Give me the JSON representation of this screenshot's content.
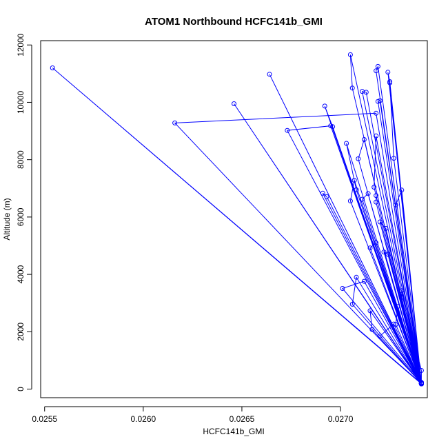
{
  "chart_data": {
    "type": "line",
    "title": "ATOM1 Northbound HCFC141b_GMI",
    "xlabel": "HCFC141b_GMI",
    "ylabel": "Altitude (m)",
    "xlim": [
      0.02548,
      0.02744
    ],
    "ylim": [
      -300,
      12150
    ],
    "x_ticks": [
      0.0255,
      0.026,
      0.0265,
      0.027
    ],
    "x_tick_labels": [
      "0.0255",
      "0.0260",
      "0.0265",
      "0.0270"
    ],
    "y_ticks": [
      0,
      2000,
      4000,
      6000,
      8000,
      10000,
      12000
    ],
    "y_tick_labels": [
      "0",
      "2000",
      "4000",
      "6000",
      "8000",
      "10000",
      "12000"
    ],
    "series_color": "#0000ff",
    "marker": "open-circle",
    "points": [
      [
        0.02741,
        180
      ],
      [
        0.02554,
        11200
      ],
      [
        0.02741,
        200
      ],
      [
        0.02664,
        10980
      ],
      [
        0.02741,
        190
      ],
      [
        0.02646,
        9950
      ],
      [
        0.02741,
        210
      ],
      [
        0.02616,
        9280
      ],
      [
        0.02718,
        9620
      ],
      [
        0.02741,
        180
      ],
      [
        0.02673,
        9020
      ],
      [
        0.02695,
        9180
      ],
      [
        0.02741,
        200
      ],
      [
        0.02705,
        11660
      ],
      [
        0.02706,
        10500
      ],
      [
        0.02741,
        190
      ],
      [
        0.02692,
        9870
      ],
      [
        0.02696,
        9150
      ],
      [
        0.02741,
        230
      ],
      [
        0.02725,
        10680
      ],
      [
        0.02727,
        8050
      ],
      [
        0.02741,
        200
      ],
      [
        0.02711,
        10380
      ],
      [
        0.02713,
        10350
      ],
      [
        0.02741,
        190
      ],
      [
        0.02718,
        11100
      ],
      [
        0.02719,
        11250
      ],
      [
        0.02741,
        210
      ],
      [
        0.02724,
        11050
      ],
      [
        0.02725,
        10720
      ],
      [
        0.02741,
        180
      ],
      [
        0.0272,
        10060
      ],
      [
        0.02719,
        10030
      ],
      [
        0.02741,
        200
      ],
      [
        0.02703,
        8570
      ],
      [
        0.02708,
        6950
      ],
      [
        0.02741,
        190
      ],
      [
        0.02709,
        8030
      ],
      [
        0.02712,
        8700
      ],
      [
        0.02741,
        230
      ],
      [
        0.02714,
        6820
      ],
      [
        0.02711,
        6620
      ],
      [
        0.02741,
        200
      ],
      [
        0.02718,
        8830
      ],
      [
        0.02717,
        7040
      ],
      [
        0.02741,
        180
      ],
      [
        0.02718,
        6750
      ],
      [
        0.02718,
        6520
      ],
      [
        0.02741,
        190
      ],
      [
        0.02691,
        6830
      ],
      [
        0.02693,
        6710
      ],
      [
        0.02741,
        210
      ],
      [
        0.02705,
        6560
      ],
      [
        0.02707,
        7280
      ],
      [
        0.02741,
        200
      ],
      [
        0.02731,
        6940
      ],
      [
        0.02728,
        6420
      ],
      [
        0.02741,
        180
      ],
      [
        0.02723,
        5600
      ],
      [
        0.0272,
        5830
      ],
      [
        0.02741,
        190
      ],
      [
        0.02715,
        4920
      ],
      [
        0.02718,
        5100
      ],
      [
        0.02741,
        200
      ],
      [
        0.02722,
        4780
      ],
      [
        0.02724,
        4700
      ],
      [
        0.02741,
        230
      ],
      [
        0.02701,
        3510
      ],
      [
        0.02712,
        3760
      ],
      [
        0.02741,
        180
      ],
      [
        0.02708,
        3900
      ],
      [
        0.02706,
        2960
      ],
      [
        0.02741,
        200
      ],
      [
        0.02715,
        2730
      ],
      [
        0.02716,
        2080
      ],
      [
        0.02741,
        190
      ],
      [
        0.0272,
        1850
      ],
      [
        0.02727,
        2270
      ],
      [
        0.02741,
        210
      ],
      [
        0.02728,
        2250
      ],
      [
        0.02729,
        2880
      ],
      [
        0.02741,
        200
      ],
      [
        0.02731,
        3200
      ],
      [
        0.02731,
        3430
      ],
      [
        0.02741,
        650
      ],
      [
        0.02741,
        180
      ]
    ]
  }
}
